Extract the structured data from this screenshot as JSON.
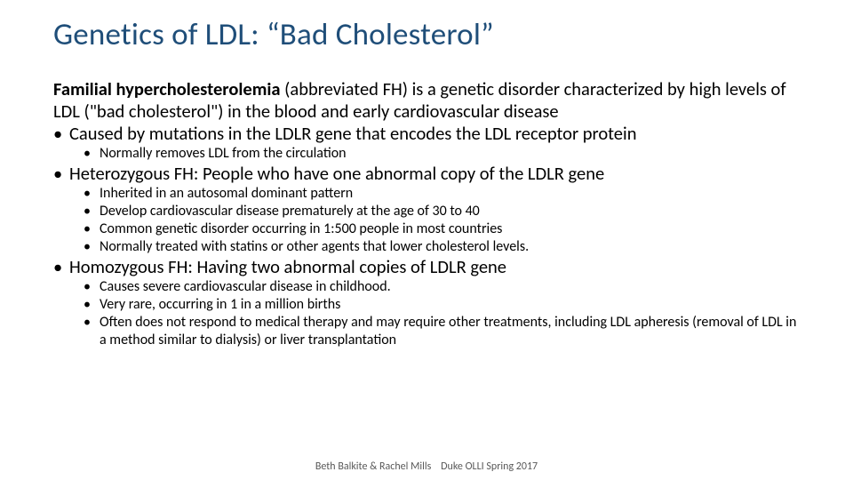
{
  "title": "Genetics of LDL: “Bad Cholesterol”",
  "intro_bold": "Familial hypercholesterolemia",
  "intro_rest": " (abbreviated FH) is a genetic disorder characterized by high levels of LDL (\"bad cholesterol\") in the blood and early cardiovascular disease",
  "b1": "Caused by mutations in the LDLR gene that encodes the LDL receptor protein",
  "b1_sub1": "Normally removes LDL from the circulation",
  "b2": "Heterozygous FH: People who have one abnormal copy of the LDLR gene",
  "b2_sub1": "Inherited in an autosomal dominant pattern",
  "b2_sub2": "Develop cardiovascular disease prematurely at the age of 30 to 40",
  "b2_sub3": "Common genetic disorder occurring in 1:500 people in most countries",
  "b2_sub4": "Normally treated with statins or other agents that lower cholesterol levels.",
  "b3": "Homozygous FH: Having two abnormal copies of LDLR gene",
  "b3_sub1": "Causes severe cardiovascular disease in childhood.",
  "b3_sub2": "Very rare, occurring in 1 in a million births",
  "b3_sub3": "Often does not respond to medical therapy and may require other treatments, including LDL apheresis (removal of LDL in a method similar to dialysis) or liver transplantation",
  "footer": "Beth Balkite & Rachel Mills    Duke OLLI Spring 2017",
  "colors": {
    "title_color": "#1f4e79",
    "body_text": "#000000",
    "footer_text": "#595959",
    "background": "#ffffff"
  },
  "typography": {
    "title_fontsize": 35,
    "lvl1_fontsize": 20.5,
    "lvl2_fontsize": 16,
    "footer_fontsize": 12,
    "font_family": "Calibri"
  }
}
